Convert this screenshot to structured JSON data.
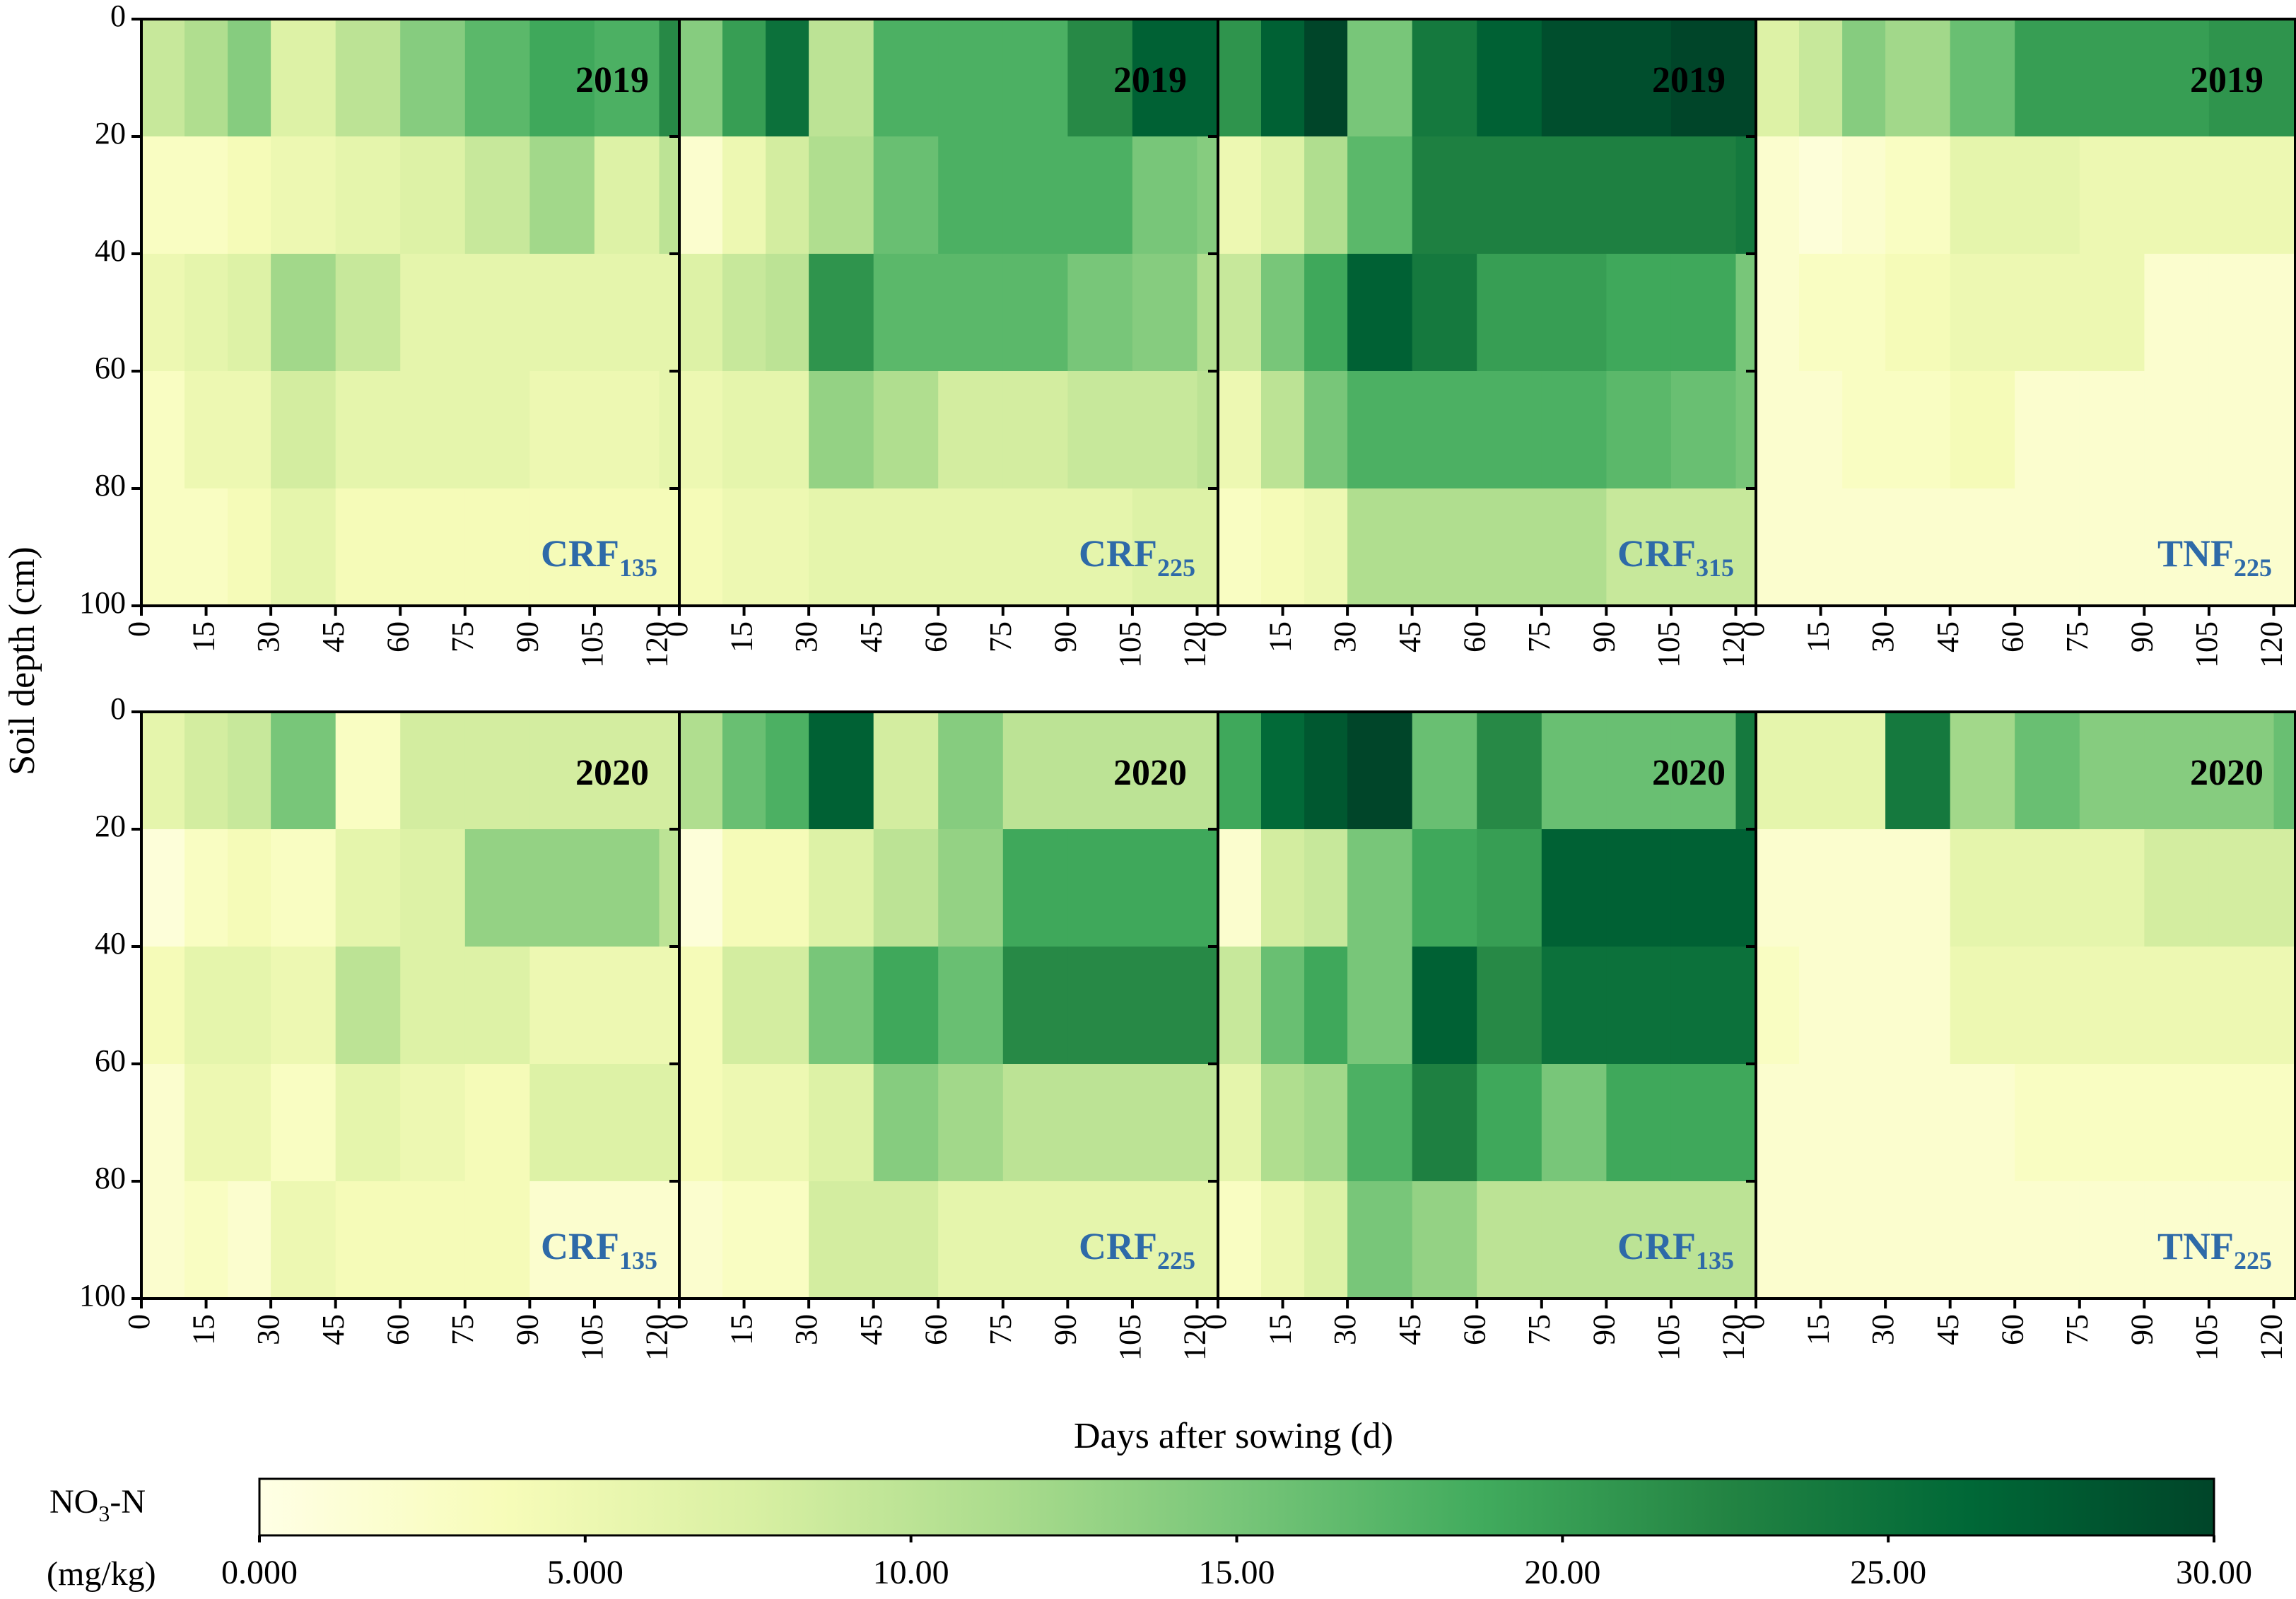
{
  "chart_data": {
    "type": "heatmap",
    "title": "",
    "xlabel": "Days after sowing (d)",
    "ylabel": "Soil depth (cm)",
    "x_ticks": [
      "0",
      "15",
      "30",
      "45",
      "60",
      "75",
      "90",
      "105",
      "120"
    ],
    "y_ticks": [
      "0",
      "20",
      "40",
      "60",
      "80",
      "100"
    ],
    "x_columns_days": [
      0,
      10,
      20,
      30,
      45,
      60,
      75,
      90,
      105,
      120
    ],
    "xlim": [
      0,
      125
    ],
    "y_rows_depth_cm": [
      "0-20",
      "20-40",
      "40-60",
      "60-80",
      "80-100"
    ],
    "ylim": [
      0,
      100
    ],
    "colorbar": {
      "label_line1_pre": "NO",
      "label_line1_sub": "3",
      "label_line1_post": "-N",
      "label_line2": "(mg/kg)",
      "tick_labels": [
        "0.000",
        "5.000",
        "10.00",
        "15.00",
        "20.00",
        "25.00",
        "30.00"
      ],
      "range": [
        0,
        30
      ],
      "colors": [
        "#ffffe5",
        "#f7fcb9",
        "#d9f0a3",
        "#addd8e",
        "#78c679",
        "#41ab5d",
        "#238443",
        "#006837",
        "#004529"
      ]
    },
    "panels": [
      {
        "year": "2019",
        "treatment": "CRF",
        "subscript": "135",
        "values": [
          [
            9,
            11,
            14,
            7,
            10,
            14,
            17,
            19,
            18,
            22
          ],
          [
            3,
            3,
            4,
            5,
            6,
            7,
            9,
            12,
            7,
            10
          ],
          [
            5,
            6,
            7,
            12,
            9,
            6,
            6,
            6,
            6,
            6
          ],
          [
            3,
            5,
            5,
            8,
            6,
            6,
            6,
            5,
            5,
            6
          ],
          [
            3,
            3,
            4,
            6,
            4,
            4,
            4,
            4,
            4,
            4
          ]
        ]
      },
      {
        "year": "2019",
        "treatment": "CRF",
        "subscript": "225",
        "values": [
          [
            14,
            20,
            25,
            10,
            18,
            18,
            18,
            22,
            27,
            27
          ],
          [
            2,
            5,
            8,
            11,
            16,
            18,
            18,
            18,
            15,
            14
          ],
          [
            7,
            9,
            10,
            21,
            17,
            17,
            17,
            15,
            14,
            11
          ],
          [
            5,
            6,
            6,
            13,
            11,
            8,
            8,
            9,
            9,
            10
          ],
          [
            4,
            5,
            5,
            6,
            6,
            6,
            6,
            6,
            7,
            7
          ]
        ]
      },
      {
        "year": "2019",
        "treatment": "CRF",
        "subscript": "315",
        "values": [
          [
            21,
            27,
            30,
            15,
            24,
            27,
            29,
            29,
            30,
            30
          ],
          [
            5,
            7,
            11,
            17,
            23,
            23,
            23,
            23,
            23,
            24
          ],
          [
            9,
            15,
            19,
            27,
            24,
            20,
            20,
            19,
            19,
            15
          ],
          [
            5,
            10,
            15,
            18,
            18,
            18,
            18,
            17,
            16,
            15
          ],
          [
            3,
            4,
            5,
            11,
            11,
            11,
            11,
            9,
            9,
            9
          ]
        ]
      },
      {
        "year": "2019",
        "treatment": "TNF",
        "subscript": "225",
        "values": [
          [
            7,
            9,
            14,
            12,
            16,
            20,
            20,
            20,
            21,
            21
          ],
          [
            2,
            1,
            2,
            3,
            6,
            6,
            5,
            5,
            5,
            5
          ],
          [
            2,
            3,
            3,
            4,
            5,
            5,
            5,
            2,
            2,
            2
          ],
          [
            2,
            2,
            3,
            3,
            4,
            2,
            2,
            2,
            2,
            2
          ],
          [
            2,
            2,
            2,
            2,
            2,
            2,
            2,
            2,
            2,
            2
          ]
        ]
      },
      {
        "year": "2020",
        "treatment": "CRF",
        "subscript": "135",
        "values": [
          [
            6,
            8,
            9,
            15,
            3,
            8,
            8,
            8,
            8,
            8
          ],
          [
            1,
            3,
            4,
            3,
            6,
            7,
            13,
            13,
            13,
            10
          ],
          [
            4,
            6,
            6,
            5,
            10,
            7,
            7,
            5,
            5,
            5
          ],
          [
            2,
            5,
            5,
            3,
            6,
            5,
            4,
            7,
            7,
            7
          ],
          [
            2,
            3,
            2,
            5,
            4,
            4,
            4,
            2,
            2,
            2
          ]
        ]
      },
      {
        "year": "2020",
        "treatment": "CRF",
        "subscript": "225",
        "values": [
          [
            11,
            16,
            18,
            27,
            8,
            14,
            10,
            10,
            10,
            10
          ],
          [
            1,
            4,
            4,
            7,
            10,
            13,
            19,
            19,
            19,
            19
          ],
          [
            4,
            8,
            8,
            15,
            19,
            16,
            22,
            22,
            22,
            22
          ],
          [
            4,
            5,
            5,
            7,
            14,
            12,
            10,
            10,
            10,
            10
          ],
          [
            2,
            3,
            3,
            8,
            8,
            6,
            6,
            6,
            6,
            6
          ]
        ]
      },
      {
        "year": "2020",
        "treatment": "CRF",
        "subscript": "135",
        "values": [
          [
            19,
            26,
            28,
            30,
            16,
            22,
            16,
            16,
            16,
            24
          ],
          [
            2,
            8,
            9,
            15,
            19,
            20,
            27,
            27,
            27,
            27
          ],
          [
            9,
            16,
            19,
            15,
            27,
            22,
            25,
            25,
            25,
            25
          ],
          [
            6,
            11,
            12,
            18,
            23,
            19,
            15,
            19,
            19,
            19
          ],
          [
            3,
            5,
            7,
            15,
            13,
            10,
            10,
            10,
            10,
            10
          ]
        ]
      },
      {
        "year": "2020",
        "treatment": "TNF",
        "subscript": "225",
        "values": [
          [
            6,
            6,
            6,
            24,
            12,
            16,
            14,
            14,
            14,
            16
          ],
          [
            2,
            2,
            2,
            2,
            6,
            6,
            6,
            8,
            8,
            8
          ],
          [
            3,
            2,
            2,
            2,
            5,
            5,
            5,
            5,
            5,
            5
          ],
          [
            2,
            2,
            2,
            2,
            2,
            3,
            3,
            3,
            3,
            3
          ],
          [
            2,
            2,
            2,
            2,
            2,
            2,
            2,
            2,
            2,
            2
          ]
        ]
      }
    ]
  }
}
